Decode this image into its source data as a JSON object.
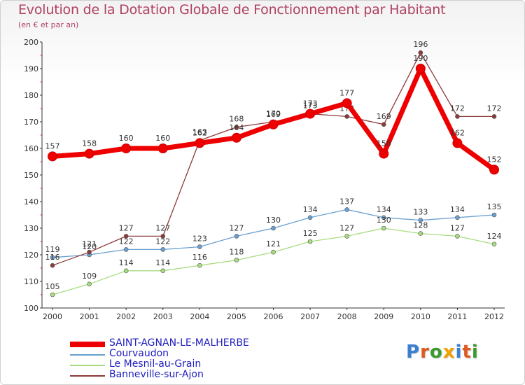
{
  "title": "Evolution de la Dotation Globale de Fonctionnement par Habitant",
  "subtitle": "(en € et par an)",
  "logo_text": "Proxiti",
  "chart_data": {
    "type": "line",
    "title": "Evolution de la Dotation Globale de Fonctionnement par Habitant",
    "subtitle": "(en € et par an)",
    "xlabel": "",
    "ylabel": "",
    "ylim": [
      100,
      200
    ],
    "yticks": [
      100,
      110,
      120,
      130,
      140,
      150,
      160,
      170,
      180,
      190,
      200
    ],
    "grid": false,
    "legend_position": "bottom-left",
    "x": [
      "2000",
      "2001",
      "2002",
      "2003",
      "2004",
      "2005",
      "2006",
      "2007",
      "2008",
      "2009",
      "2010",
      "2011",
      "2012"
    ],
    "series": [
      {
        "name": "SAINT-AGNAN-LE-MALHERBE",
        "color": "#ee0000",
        "values": [
          157,
          158,
          160,
          160,
          162,
          164,
          169,
          173,
          177,
          158,
          190,
          162,
          152
        ],
        "emphasis": true
      },
      {
        "name": "Courvaudon",
        "color": "#6aa0d0",
        "values": [
          119,
          120,
          122,
          122,
          123,
          127,
          130,
          134,
          137,
          134,
          133,
          134,
          135
        ]
      },
      {
        "name": "Le Mesnil-au-Grain",
        "color": "#a8dc80",
        "values": [
          105,
          109,
          114,
          114,
          116,
          118,
          121,
          125,
          127,
          130,
          128,
          127,
          124
        ]
      },
      {
        "name": "Banneville-sur-Ajon",
        "color": "#8c3a3a",
        "values": [
          116,
          121,
          127,
          127,
          163,
          168,
          170,
          173,
          172,
          169,
          196,
          172,
          172
        ]
      }
    ]
  }
}
